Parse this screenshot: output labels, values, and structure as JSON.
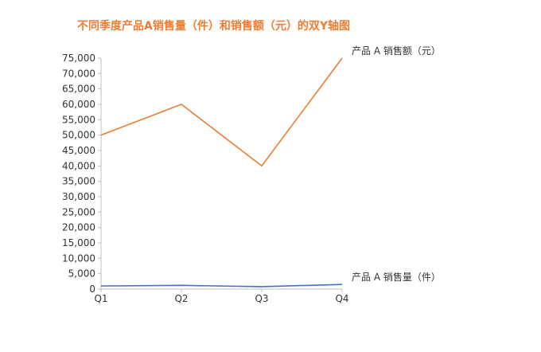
{
  "chart_data": {
    "type": "line",
    "title": "不同季度产品A销售量（件）和销售额（元）的双Y轴图",
    "categories": [
      "Q1",
      "Q2",
      "Q3",
      "Q4"
    ],
    "ylim": [
      0,
      75000
    ],
    "yticks": [
      0,
      5000,
      10000,
      15000,
      20000,
      25000,
      30000,
      35000,
      40000,
      45000,
      50000,
      55000,
      60000,
      65000,
      70000,
      75000
    ],
    "ytick_labels": [
      "0",
      "5,000",
      "10,000",
      "15,000",
      "20,000",
      "25,000",
      "30,000",
      "35,000",
      "40,000",
      "45,000",
      "50,000",
      "55,000",
      "60,000",
      "65,000",
      "70,000",
      "75,000"
    ],
    "series": [
      {
        "name": "产品 A 销售额（元）",
        "values": [
          50000,
          60000,
          40000,
          75000
        ],
        "color": "#ED7D31"
      },
      {
        "name": "产品 A 销售量（件）",
        "values": [
          1000,
          1200,
          800,
          1500
        ],
        "color": "#4472C4"
      }
    ],
    "grid": false,
    "legend": "inline-right"
  }
}
